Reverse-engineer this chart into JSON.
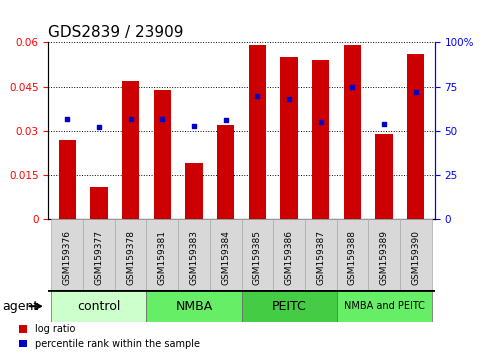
{
  "title": "GDS2839 / 23909",
  "samples": [
    "GSM159376",
    "GSM159377",
    "GSM159378",
    "GSM159381",
    "GSM159383",
    "GSM159384",
    "GSM159385",
    "GSM159386",
    "GSM159387",
    "GSM159388",
    "GSM159389",
    "GSM159390"
  ],
  "log_ratio": [
    0.027,
    0.011,
    0.047,
    0.044,
    0.019,
    0.032,
    0.059,
    0.055,
    0.054,
    0.059,
    0.029,
    0.056
  ],
  "percentile_rank_pct": [
    57,
    52,
    57,
    57,
    53,
    56,
    70,
    68,
    55,
    75,
    54,
    72
  ],
  "bar_color": "#cc0000",
  "dot_color": "#0000cc",
  "ylim_left": [
    0,
    0.06
  ],
  "ylim_right": [
    0,
    100
  ],
  "yticks_left": [
    0,
    0.015,
    0.03,
    0.045,
    0.06
  ],
  "yticks_left_labels": [
    "0",
    "0.015",
    "0.03",
    "0.045",
    "0.06"
  ],
  "yticks_right": [
    0,
    25,
    50,
    75,
    100
  ],
  "yticks_right_labels": [
    "0",
    "25",
    "50",
    "75",
    "100%"
  ],
  "groups": [
    {
      "label": "control",
      "start": 0,
      "end": 3,
      "color": "#ccffcc"
    },
    {
      "label": "NMBA",
      "start": 3,
      "end": 6,
      "color": "#66ee66"
    },
    {
      "label": "PEITC",
      "start": 6,
      "end": 9,
      "color": "#44cc44"
    },
    {
      "label": "NMBA and PEITC",
      "start": 9,
      "end": 12,
      "color": "#66ee66"
    }
  ],
  "legend_log_ratio": "log ratio",
  "legend_percentile": "percentile rank within the sample",
  "bar_width": 0.55,
  "title_fontsize": 11,
  "tick_fontsize": 7.5,
  "sample_fontsize": 6.5,
  "group_fontsize": 9
}
